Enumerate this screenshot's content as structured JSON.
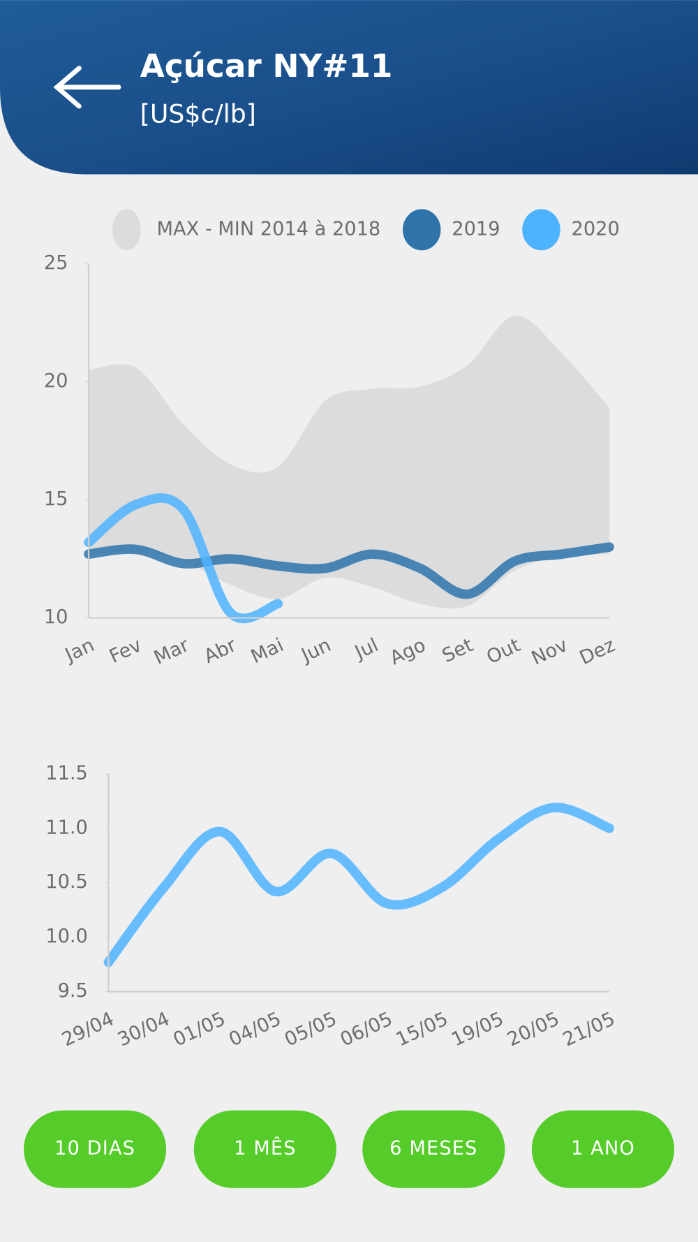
{
  "header": {
    "title": "Açúcar NY#11",
    "subtitle": "[US$c/lb]"
  },
  "chart_data": [
    {
      "type": "line",
      "categories": [
        "Jan",
        "Fev",
        "Mar",
        "Abr",
        "Mai",
        "Jun",
        "Jul",
        "Ago",
        "Set",
        "Out",
        "Nov",
        "Dez"
      ],
      "series": [
        {
          "name": "MAX - MIN 2014 à 2018",
          "color": "#dcdcdc",
          "type": "band",
          "high": [
            20.5,
            20.6,
            18.2,
            16.5,
            16.4,
            19.2,
            19.7,
            19.8,
            20.7,
            22.8,
            21.2,
            18.9
          ],
          "low": [
            12.7,
            12.8,
            12.4,
            11.4,
            10.8,
            11.7,
            11.3,
            10.6,
            10.5,
            12.0,
            12.6,
            12.7
          ]
        },
        {
          "name": "2019",
          "color": "#2e74ab",
          "values": [
            12.7,
            12.9,
            12.3,
            12.5,
            12.2,
            12.1,
            12.7,
            12.1,
            11.0,
            12.4,
            12.7,
            13.0
          ]
        },
        {
          "name": "2020",
          "color": "#4db3ff",
          "values": [
            13.2,
            14.8,
            14.6,
            10.2,
            10.6,
            null,
            null,
            null,
            null,
            null,
            null,
            null
          ]
        }
      ],
      "ylim": [
        10,
        25
      ],
      "yticks": [
        10,
        15,
        20,
        25
      ],
      "grid": false
    },
    {
      "type": "line",
      "categories": [
        "29/04",
        "30/04",
        "01/05",
        "04/05",
        "05/05",
        "06/05",
        "15/05",
        "19/05",
        "20/05",
        "21/05"
      ],
      "series": [
        {
          "name": null,
          "color": "#4db3ff",
          "values": [
            9.77,
            10.46,
            10.97,
            10.42,
            10.77,
            10.31,
            10.46,
            10.9,
            11.19,
            11.0
          ]
        }
      ],
      "ylim": [
        9.5,
        11.5
      ],
      "yticks": [
        {
          "value": 9.5,
          "label": "9.5"
        },
        {
          "value": 10,
          "label": "10.0"
        },
        {
          "value": 10.5,
          "label": "10.5"
        },
        {
          "value": 11,
          "label": "11.0"
        },
        {
          "value": 11.5,
          "label": "11.5"
        }
      ],
      "grid": false
    }
  ],
  "buttons": [
    "10 DIAS",
    "1 MÊS",
    "6 MESES",
    "1 ANO"
  ]
}
